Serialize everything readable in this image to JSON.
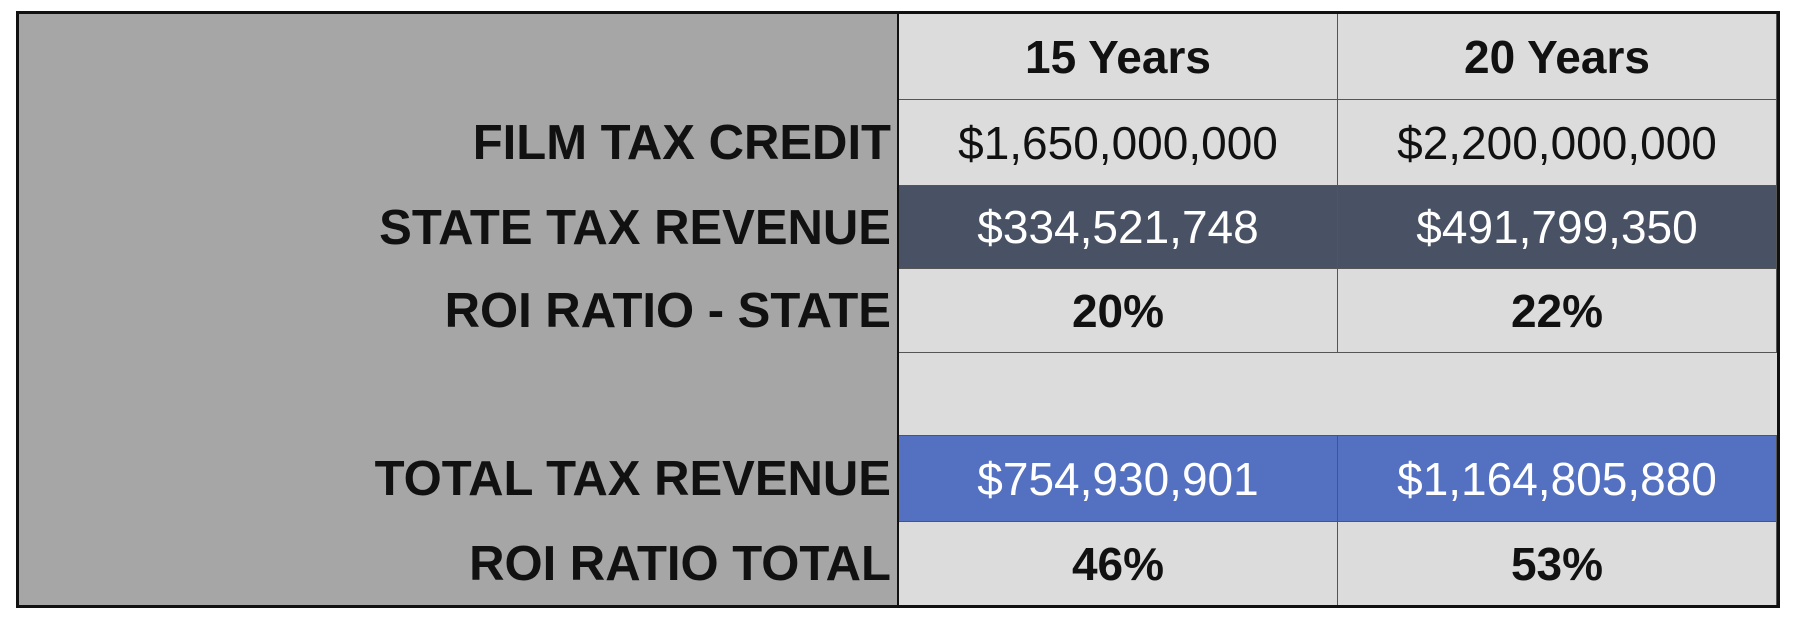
{
  "table": {
    "columns": [
      "15 Years",
      "20 Years"
    ],
    "rows": [
      {
        "label": "FILM TAX CREDIT",
        "values": [
          "$1,650,000,000",
          "$2,200,000,000"
        ]
      },
      {
        "label": "STATE TAX REVENUE",
        "values": [
          "$334,521,748",
          "$491,799,350"
        ]
      },
      {
        "label": "ROI RATIO - STATE",
        "values": [
          "20%",
          "22%"
        ]
      },
      {
        "label": "TOTAL TAX REVENUE",
        "values": [
          "$754,930,901",
          "$1,164,805,880"
        ]
      },
      {
        "label": "ROI RATIO TOTAL",
        "values": [
          "46%",
          "53%"
        ]
      }
    ]
  }
}
